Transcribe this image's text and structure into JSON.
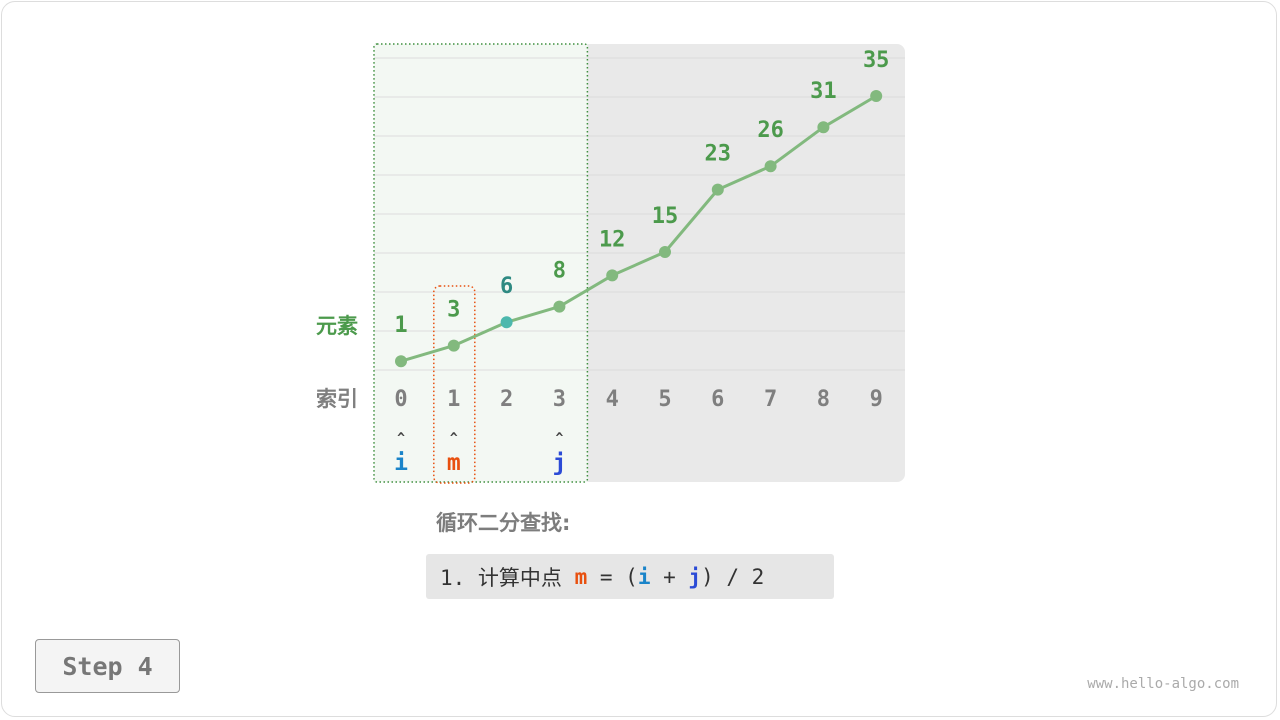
{
  "diagram": {
    "row_labels": {
      "elements": "元素",
      "indices": "索引"
    },
    "values": [
      1,
      3,
      6,
      8,
      12,
      15,
      23,
      26,
      31,
      35
    ],
    "indices": [
      "0",
      "1",
      "2",
      "3",
      "4",
      "5",
      "6",
      "7",
      "8",
      "9"
    ],
    "highlighted_index": 2,
    "search_range": {
      "i": 0,
      "j": 3
    },
    "pointers": [
      {
        "name": "i",
        "index": 0,
        "color": "#1a84c9"
      },
      {
        "name": "m",
        "index": 1,
        "color": "#e8500f"
      },
      {
        "name": "j",
        "index": 3,
        "color": "#2b4bd6"
      }
    ],
    "pointer_arrow": "^",
    "colors": {
      "line": "#82b97e",
      "label": "#4c9a4c",
      "highlight": "#4cb8ad",
      "highlight_label": "#2e8a82",
      "index": "#7f7f7f",
      "active_bg": "#f3f8f3",
      "excluded_bg": "#e9e9e9"
    }
  },
  "algorithm": {
    "title": "循环二分查找:",
    "step_prefix": "1. 计算中点 ",
    "m": "m",
    "eq": " = (",
    "i": "i",
    "plus": " + ",
    "j": "j",
    "suffix": ") / 2"
  },
  "step_button": "Step 4",
  "watermark": "www.hello-algo.com"
}
